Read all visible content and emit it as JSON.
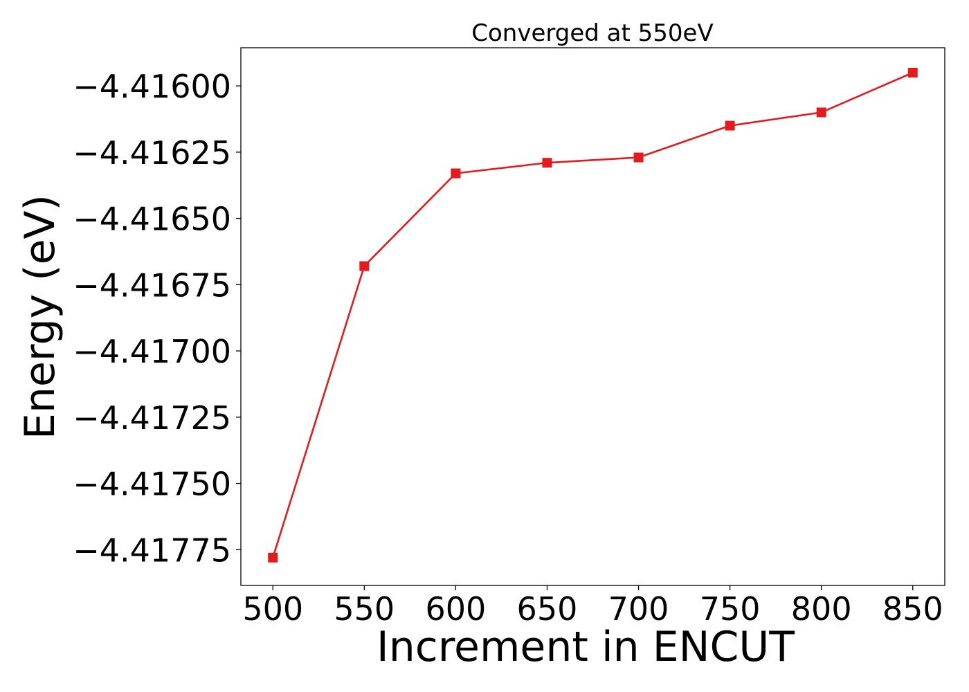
{
  "chart_data": {
    "type": "line",
    "title": "Converged at 550eV",
    "xlabel": "Increment in ENCUT",
    "ylabel": "Energy (eV)",
    "x": [
      500,
      550,
      600,
      650,
      700,
      750,
      800,
      850
    ],
    "series": [
      {
        "values": [
          -4.41778,
          -4.41668,
          -4.41633,
          -4.41629,
          -4.41627,
          -4.41615,
          -4.4161,
          -4.41595
        ],
        "color": "#e41a1c",
        "marker": "square"
      }
    ],
    "xticks": [
      500,
      550,
      600,
      650,
      700,
      750,
      800,
      850
    ],
    "xtick_labels": [
      "500",
      "550",
      "600",
      "650",
      "700",
      "750",
      "800",
      "850"
    ],
    "yticks": [
      -4.416,
      -4.41625,
      -4.4165,
      -4.41675,
      -4.417,
      -4.41725,
      -4.4175,
      -4.41775
    ],
    "ytick_labels": [
      "−4.41600",
      "−4.41625",
      "−4.41650",
      "−4.41675",
      "−4.41700",
      "−4.41725",
      "−4.41750",
      "−4.41775"
    ],
    "xlim": [
      482.5,
      867.5
    ],
    "ylim": [
      -4.417885,
      -4.415856
    ],
    "grid": false,
    "legend": false
  }
}
